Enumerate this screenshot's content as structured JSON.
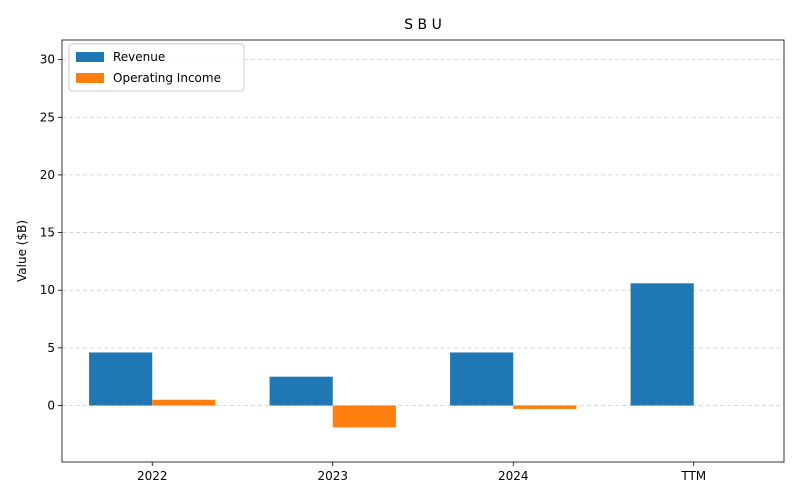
{
  "chart_data": {
    "type": "bar",
    "title": "S B U",
    "xlabel": "",
    "ylabel": "Value ($B)",
    "categories": [
      "2022",
      "2023",
      "2024",
      "TTM"
    ],
    "series": [
      {
        "name": "Revenue",
        "color": "#1f77b4",
        "values": [
          4.6,
          2.5,
          4.6,
          10.6
        ]
      },
      {
        "name": "Operating Income",
        "color": "#ff7f0e",
        "values": [
          0.5,
          -1.9,
          -0.3,
          null
        ]
      }
    ],
    "ylim": [
      -4.9,
      31.7
    ],
    "yticks": [
      0,
      5,
      10,
      15,
      20,
      25,
      30
    ],
    "grid": true,
    "legend_position": "top-left"
  }
}
